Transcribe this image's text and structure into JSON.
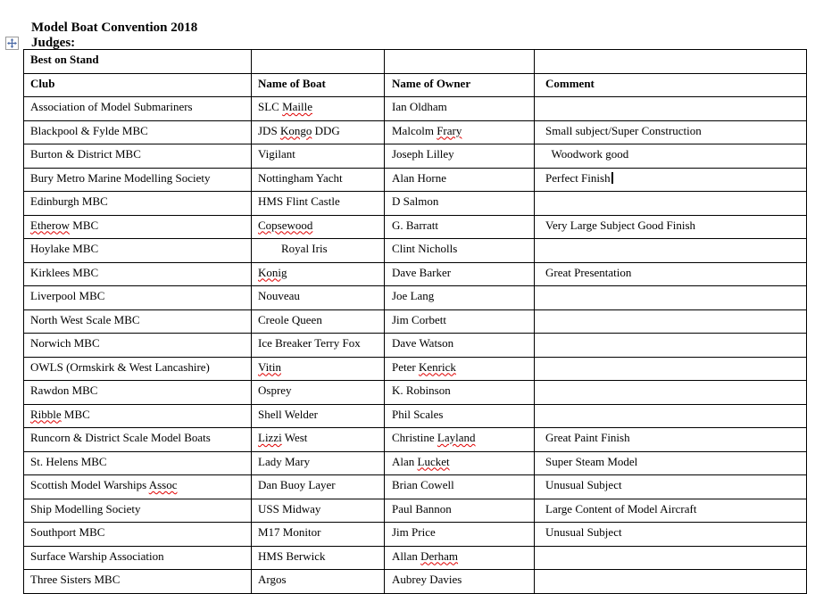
{
  "doc": {
    "title": "Model Boat Convention 2018",
    "judges_label": "Judges:",
    "table": {
      "top_row_label": "Best on Stand",
      "headers": [
        "Club",
        "Name of Boat",
        "Name of Owner",
        "Comment"
      ],
      "rows": [
        {
          "club": "Association of Model Submariners",
          "boat": "SLC [[Maille]]",
          "owner": "Ian Oldham",
          "comment": ""
        },
        {
          "club": "Blackpool & Fylde MBC",
          "boat": "JDS [[Kongo]] DDG",
          "owner": "Malcolm [[Frary]]",
          "comment": "Small subject/Super Construction"
        },
        {
          "club": "Burton & District MBC",
          "boat": "Vigilant",
          "owner": "Joseph Lilley",
          "comment": "  Woodwork good"
        },
        {
          "club": "Bury Metro Marine Modelling Society",
          "boat": "Nottingham Yacht",
          "owner": "Alan Horne",
          "comment": "Perfect Finish",
          "caret": true
        },
        {
          "club": "Edinburgh MBC",
          "boat": "HMS Flint Castle",
          "owner": "D Salmon",
          "comment": ""
        },
        {
          "club": "[[Etherow]] MBC",
          "boat": "[[Copsewood]]",
          "owner": "G. Barratt",
          "comment": "Very Large Subject Good Finish"
        },
        {
          "club": "Hoylake MBC",
          "boat": "        Royal Iris",
          "owner": "Clint Nicholls",
          "comment": ""
        },
        {
          "club": "Kirklees MBC",
          "boat": "[[Konig]]",
          "owner": "Dave Barker",
          "comment": "Great Presentation"
        },
        {
          "club": "Liverpool MBC",
          "boat": "Nouveau",
          "owner": "Joe Lang",
          "comment": ""
        },
        {
          "club": "North West Scale MBC",
          "boat": "Creole Queen",
          "owner": "Jim Corbett",
          "comment": ""
        },
        {
          "club": "Norwich MBC",
          "boat": "Ice Breaker Terry Fox",
          "owner": "Dave Watson",
          "comment": ""
        },
        {
          "club": "OWLS (Ormskirk & West Lancashire)",
          "boat": "[[Vitin]]",
          "owner": "Peter [[Kenrick]]",
          "comment": ""
        },
        {
          "club": "Rawdon MBC",
          "boat": "Osprey",
          "owner": "K. Robinson",
          "comment": ""
        },
        {
          "club": "[[Ribble]] MBC",
          "boat": "Shell Welder",
          "owner": "Phil Scales",
          "comment": ""
        },
        {
          "club": "Runcorn & District Scale Model Boats",
          "boat": "[[Lizzi]] West",
          "owner": "Christine [[Layland]]",
          "comment": "Great Paint Finish"
        },
        {
          "club": "St. Helens MBC",
          "boat": "Lady Mary",
          "owner": "Alan [[Lucket]]",
          "comment": "Super Steam Model"
        },
        {
          "club": "Scottish Model Warships [[Assoc]]",
          "boat": "Dan Buoy Layer",
          "owner": "Brian Cowell",
          "comment": "Unusual Subject"
        },
        {
          "club": "Ship Modelling Society",
          "boat": "USS Midway",
          "owner": "Paul Bannon",
          "comment": "Large Content of Model Aircraft"
        },
        {
          "club": "Southport MBC",
          "boat": "M17 Monitor",
          "owner": "Jim Price",
          "comment": "Unusual Subject"
        },
        {
          "club": "Surface Warship Association",
          "boat": "HMS Berwick",
          "owner": "Allan [[Derham]]",
          "comment": ""
        },
        {
          "club": "Three Sisters MBC",
          "boat": "Argos",
          "owner": "Aubrey Davies",
          "comment": ""
        }
      ]
    }
  },
  "icons": {
    "table_move_handle": "four-way-move-arrow"
  },
  "colors": {
    "spellcheck_squiggle": "#e00000",
    "table_border": "#000000",
    "move_handle_arrow": "#4a69a5",
    "move_handle_box_border": "#9a9a9a",
    "page_background": "#ffffff"
  },
  "markup_note": "words wrapped in [[ ]] carry a red spell-check squiggle; caret:true marks the blinking text cursor after the comment text"
}
